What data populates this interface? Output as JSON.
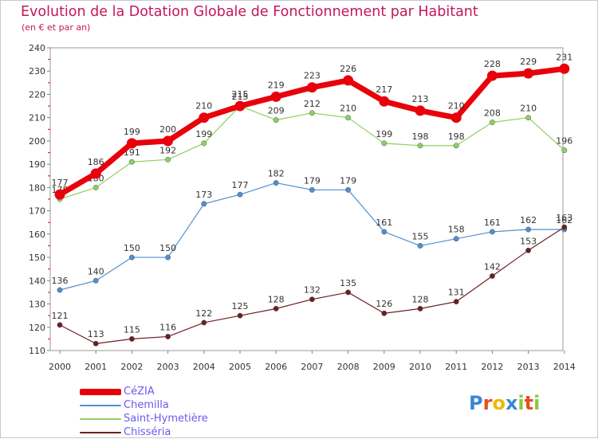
{
  "header": {
    "title": "Evolution de la Dotation Globale de Fonctionnement par Habitant",
    "subtitle": "(en € et par an)"
  },
  "logo": {
    "text": "Proxiti",
    "letters": [
      {
        "ch": "P",
        "color": "#3a87d6"
      },
      {
        "ch": "r",
        "color": "#e8501a"
      },
      {
        "ch": "o",
        "color": "#f2b705"
      },
      {
        "ch": "x",
        "color": "#3a87d6"
      },
      {
        "ch": "i",
        "color": "#8cc63f"
      },
      {
        "ch": "t",
        "color": "#e8501a"
      },
      {
        "ch": "i",
        "color": "#8cc63f"
      }
    ]
  },
  "chart_data": {
    "type": "line",
    "title": "Evolution de la Dotation Globale de Fonctionnement par Habitant",
    "subtitle": "(en € et par an)",
    "categories": [
      "2000",
      "2001",
      "2002",
      "2003",
      "2004",
      "2005",
      "2006",
      "2007",
      "2008",
      "2009",
      "2010",
      "2011",
      "2012",
      "2013",
      "2014"
    ],
    "ylim": [
      110,
      240
    ],
    "yticks": [
      110,
      120,
      130,
      140,
      150,
      160,
      170,
      180,
      190,
      200,
      210,
      220,
      230,
      240
    ],
    "grid": false,
    "legend_position": "bottom-left",
    "series": [
      {
        "name": "CéZIA",
        "color": "#e8000b",
        "emphasis": true,
        "values": [
          177,
          186,
          199,
          200,
          210,
          215,
          219,
          223,
          226,
          217,
          213,
          210,
          228,
          229,
          231
        ]
      },
      {
        "name": "Chemilla",
        "color": "#4f8fcf",
        "emphasis": false,
        "values": [
          136,
          140,
          150,
          150,
          173,
          177,
          182,
          179,
          179,
          161,
          155,
          158,
          161,
          162,
          162
        ]
      },
      {
        "name": "Saint-Hymetière",
        "color": "#8ed061",
        "emphasis": false,
        "values": [
          175,
          180,
          191,
          192,
          199,
          215,
          209,
          212,
          210,
          199,
          198,
          198,
          208,
          210,
          196
        ]
      },
      {
        "name": "Chisséria",
        "color": "#6b1f24",
        "emphasis": false,
        "values": [
          121,
          113,
          115,
          116,
          122,
          125,
          128,
          132,
          135,
          126,
          128,
          131,
          142,
          153,
          163
        ]
      }
    ]
  }
}
